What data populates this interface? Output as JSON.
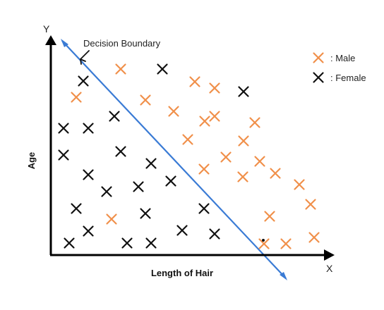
{
  "diagram": {
    "annotation": "Decision Boundary",
    "x_axis_letter": "X",
    "y_axis_letter": "Y",
    "x_axis_label": "Length of Hair",
    "y_axis_label": "Age",
    "legend": {
      "male_label": ": Male",
      "female_label": ": Female"
    },
    "colors": {
      "male": "#f0904a",
      "female": "#111111",
      "boundary": "#3a7bd5",
      "axis": "#000000"
    }
  }
}
